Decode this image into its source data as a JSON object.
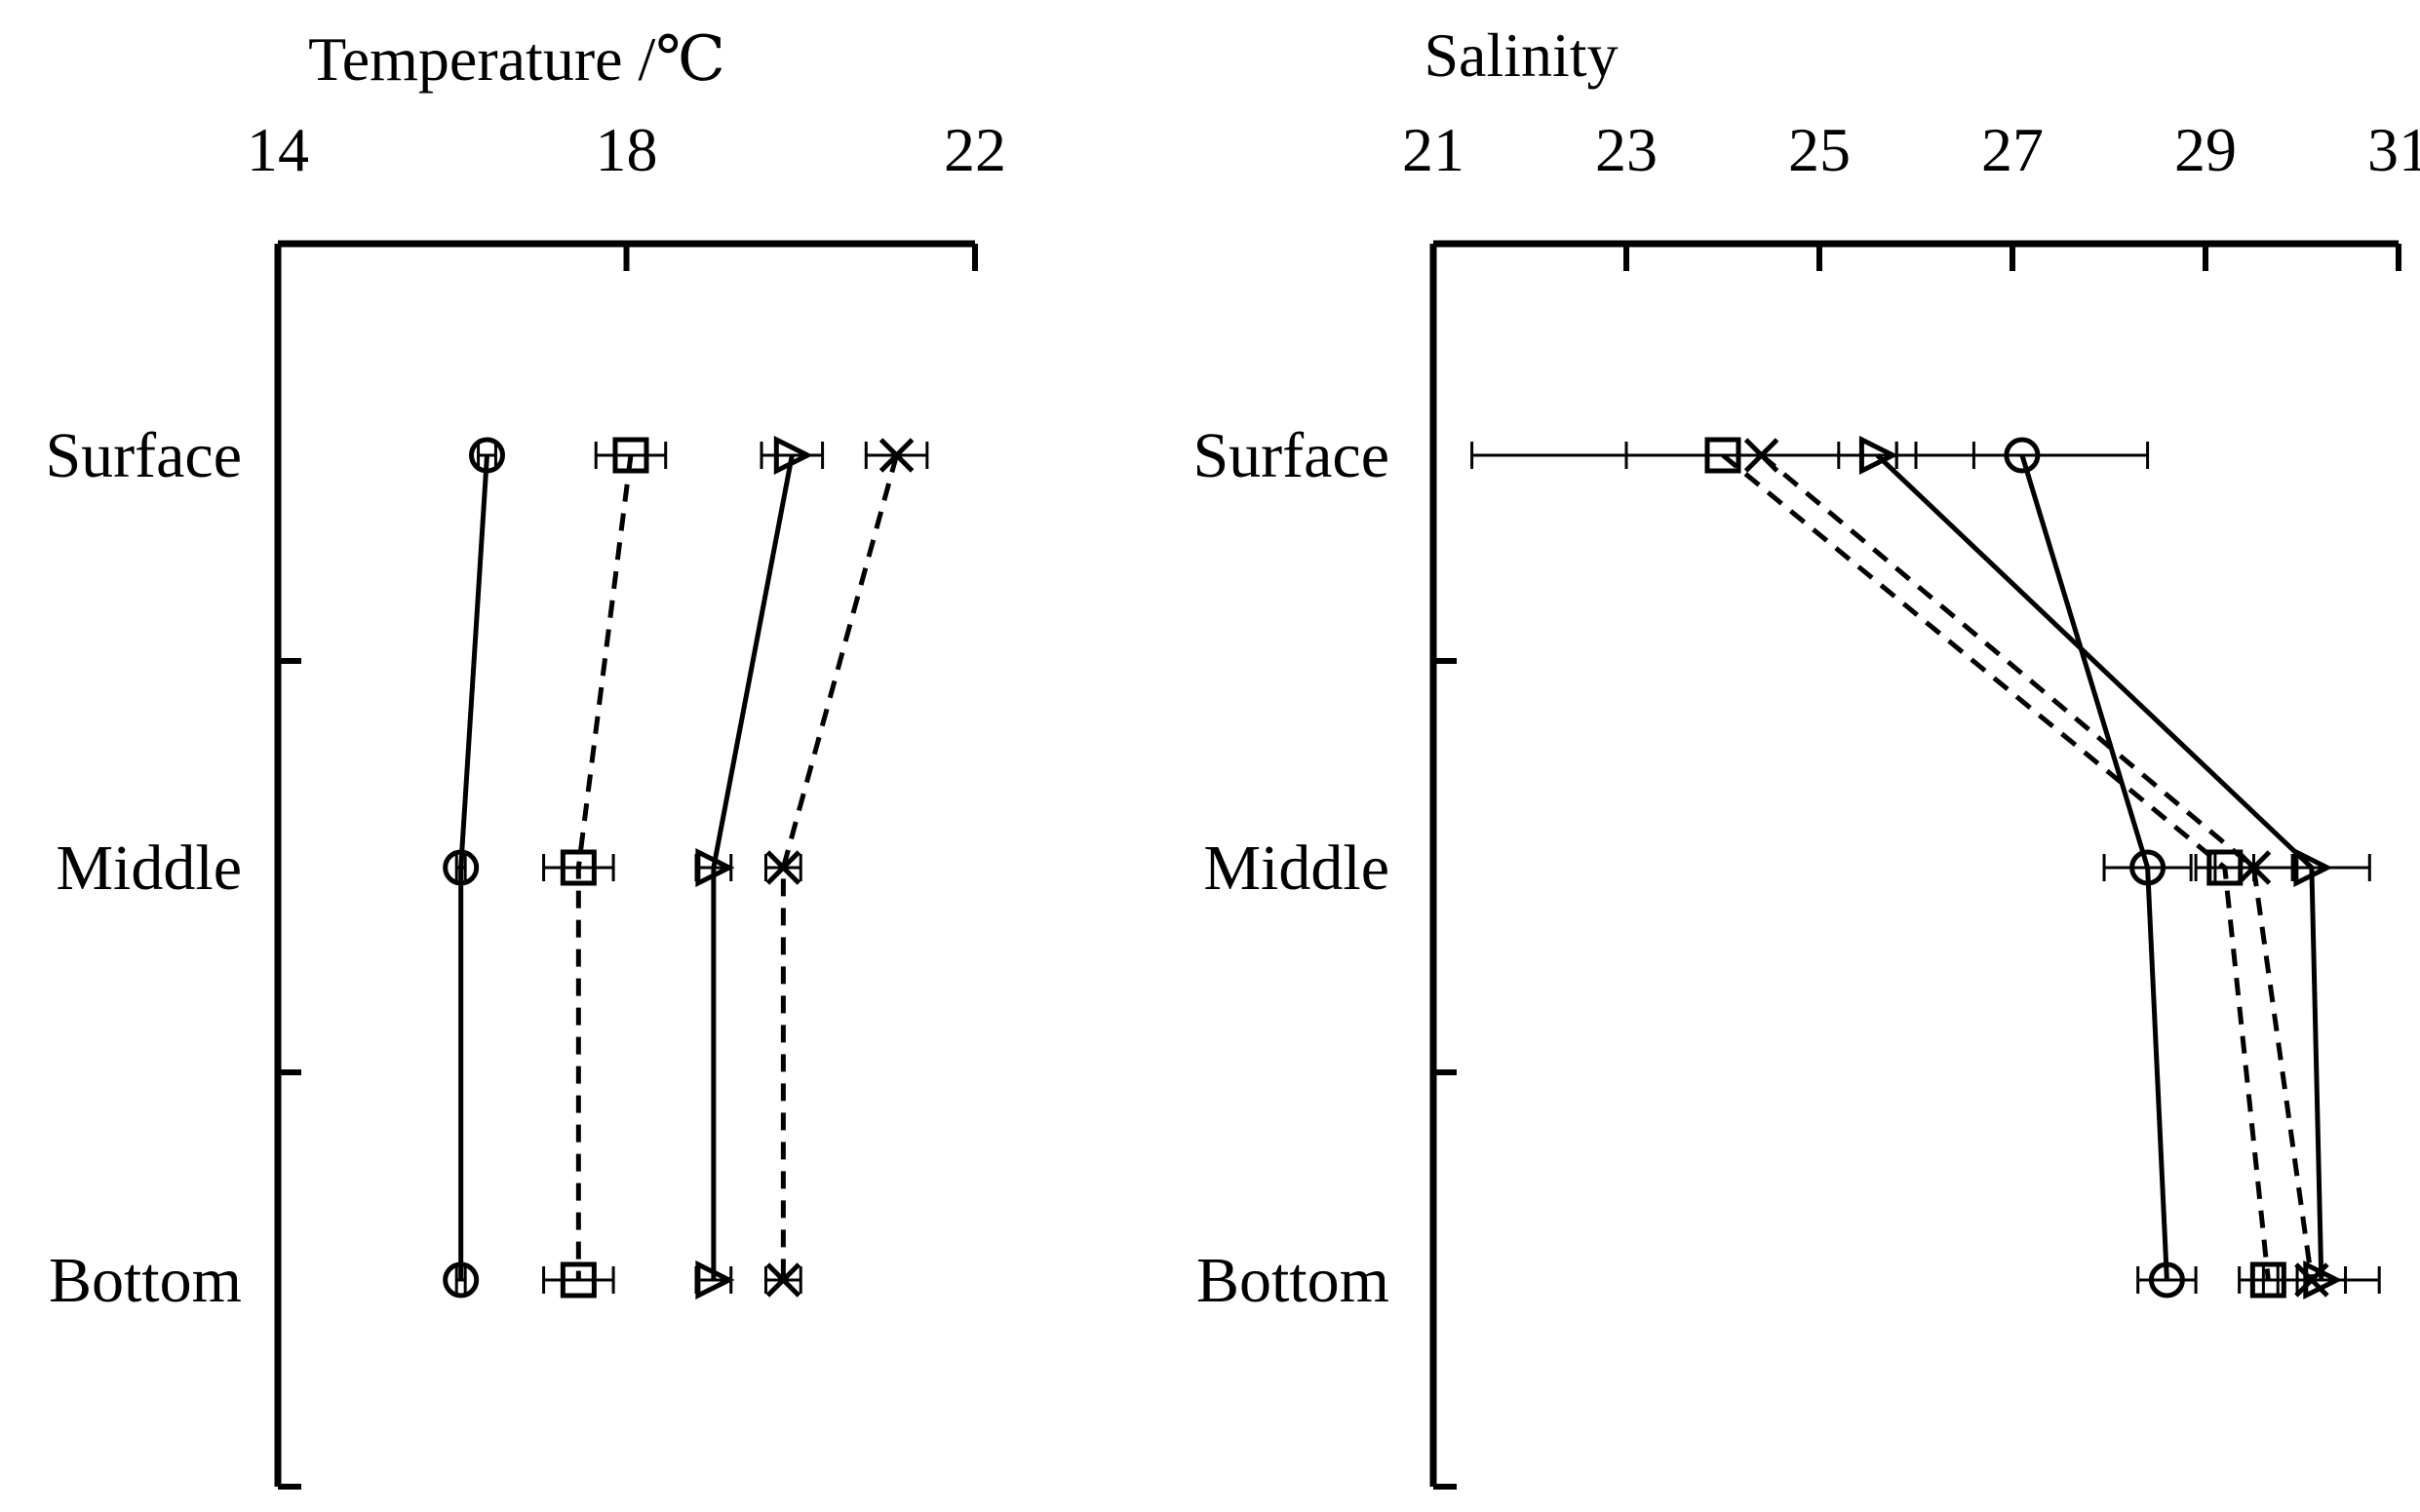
{
  "chart_data": [
    {
      "type": "line",
      "orientation": "horizontal-profile",
      "title": "Temperature /℃",
      "x_ticks": [
        "14",
        "18",
        "22"
      ],
      "xlim": [
        14,
        22
      ],
      "categories": [
        "Surface",
        "Middle",
        "Bottom"
      ],
      "grid": false,
      "series": [
        {
          "marker": "circle",
          "line": "solid",
          "values": [
            16.4,
            16.1,
            16.1
          ],
          "errors": [
            0.1,
            0.05,
            0.05
          ]
        },
        {
          "marker": "square",
          "line": "dashed",
          "values": [
            18.05,
            17.45,
            17.45
          ],
          "errors": [
            0.4,
            0.4,
            0.4
          ]
        },
        {
          "marker": "triangle",
          "line": "solid",
          "values": [
            19.9,
            19.0,
            19.0
          ],
          "errors": [
            0.35,
            0.2,
            0.2
          ]
        },
        {
          "marker": "x",
          "line": "dashed",
          "values": [
            21.1,
            19.8,
            19.8
          ],
          "errors": [
            0.35,
            0.2,
            0.2
          ]
        }
      ]
    },
    {
      "type": "line",
      "orientation": "horizontal-profile",
      "title": "Salinity",
      "x_ticks": [
        "21",
        "23",
        "25",
        "27",
        "29",
        "31"
      ],
      "xlim": [
        21,
        31
      ],
      "categories": [
        "Surface",
        "Middle",
        "Bottom"
      ],
      "grid": false,
      "series": [
        {
          "marker": "circle",
          "line": "solid",
          "values": [
            27.1,
            28.4,
            28.6
          ],
          "errors": [
            1.3,
            0.45,
            0.3
          ]
        },
        {
          "marker": "square",
          "line": "dashed",
          "values": [
            24.0,
            29.2,
            29.65
          ],
          "errors": [
            2.6,
            0.3,
            0.3
          ]
        },
        {
          "marker": "triangle",
          "line": "solid",
          "values": [
            25.6,
            30.1,
            30.2
          ],
          "errors": [
            0.4,
            0.6,
            0.6
          ]
        },
        {
          "marker": "x",
          "line": "dashed",
          "values": [
            24.4,
            29.5,
            30.1
          ],
          "errors": [
            1.4,
            0.4,
            0.35
          ]
        }
      ]
    }
  ]
}
